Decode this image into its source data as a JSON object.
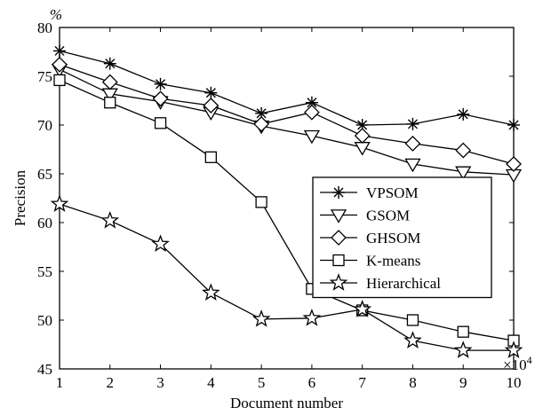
{
  "chart_data": {
    "type": "line",
    "xlabel": "Document number",
    "ylabel": "Precision",
    "y_unit": "%",
    "x_multiplier": "×10",
    "x_multiplier_exp": "4",
    "xlim": [
      1,
      10
    ],
    "ylim": [
      45,
      80
    ],
    "x": [
      1,
      2,
      3,
      4,
      5,
      6,
      7,
      8,
      9,
      10
    ],
    "x_ticks": [
      1,
      2,
      3,
      4,
      5,
      6,
      7,
      8,
      9,
      10
    ],
    "y_ticks": [
      45,
      50,
      55,
      60,
      65,
      70,
      75,
      80
    ],
    "grid": false,
    "legend_position": "center-right",
    "series": [
      {
        "name": "VPSOM",
        "marker": "asterisk",
        "values": [
          77.6,
          76.3,
          74.2,
          73.3,
          71.2,
          72.3,
          70.0,
          70.1,
          71.1,
          70.0
        ]
      },
      {
        "name": "GSOM",
        "marker": "triangle-down",
        "values": [
          75.7,
          73.2,
          72.4,
          71.3,
          69.9,
          68.9,
          67.7,
          66.0,
          65.2,
          64.9
        ]
      },
      {
        "name": "GHSOM",
        "marker": "diamond",
        "values": [
          76.2,
          74.4,
          72.7,
          72.0,
          70.1,
          71.3,
          68.9,
          68.1,
          67.4,
          66.0
        ]
      },
      {
        "name": "K-means",
        "marker": "square",
        "values": [
          74.6,
          72.3,
          70.2,
          66.7,
          62.1,
          53.2,
          51.0,
          50.0,
          48.8,
          47.9
        ]
      },
      {
        "name": "Hierarchical",
        "marker": "star",
        "values": [
          61.9,
          60.2,
          57.8,
          52.8,
          50.1,
          50.2,
          51.1,
          47.9,
          46.9,
          46.9
        ]
      }
    ]
  }
}
